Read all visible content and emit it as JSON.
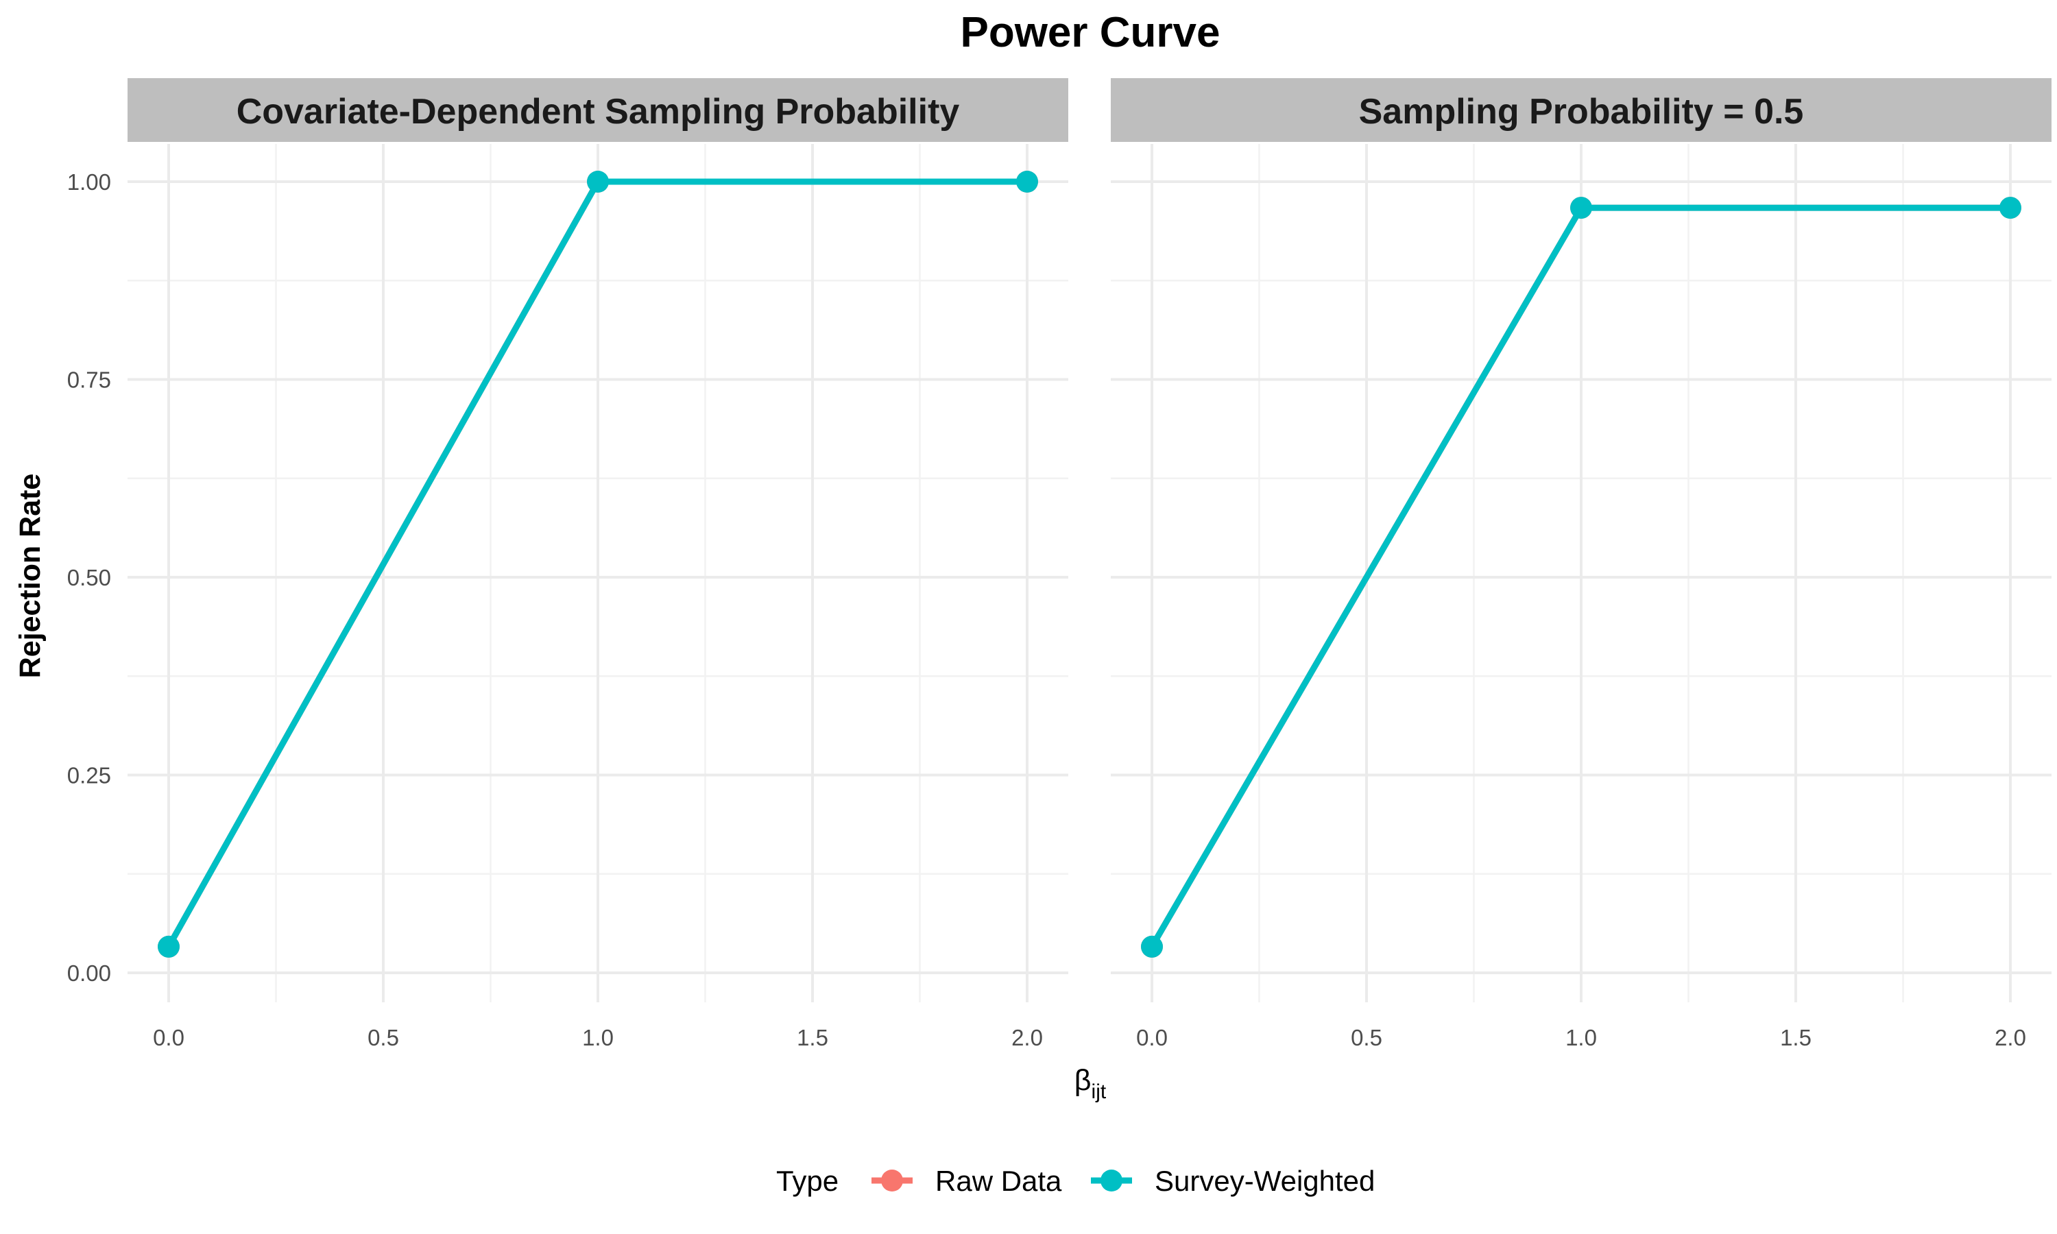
{
  "chart_data": {
    "type": "line",
    "title": "Power Curve",
    "xlabel_main": "β",
    "xlabel_sub": "ijt",
    "ylabel": "Rejection Rate",
    "xlim": [
      0,
      2
    ],
    "ylim": [
      0,
      1
    ],
    "x_ticks": [
      "0.0",
      "0.5",
      "1.0",
      "1.5",
      "2.0"
    ],
    "y_ticks": [
      "0.00",
      "0.25",
      "0.50",
      "0.75",
      "1.00"
    ],
    "grid": true,
    "legend": {
      "title": "Type",
      "position": "bottom",
      "entries": [
        {
          "label": "Raw Data",
          "color": "#F8766D"
        },
        {
          "label": "Survey-Weighted",
          "color": "#00BFC4"
        }
      ]
    },
    "panels": [
      {
        "strip": "Covariate-Dependent Sampling Probability",
        "series": [
          {
            "name": "Raw Data",
            "color": "#F8766D",
            "x": [
              0,
              1,
              2
            ],
            "y": [
              0.033,
              1.0,
              1.0
            ]
          },
          {
            "name": "Survey-Weighted",
            "color": "#00BFC4",
            "x": [
              0,
              1,
              2
            ],
            "y": [
              0.033,
              1.0,
              1.0
            ]
          }
        ]
      },
      {
        "strip": "Sampling Probability = 0.5",
        "series": [
          {
            "name": "Raw Data",
            "color": "#F8766D",
            "x": [
              0,
              1,
              2
            ],
            "y": [
              0.033,
              0.967,
              0.967
            ]
          },
          {
            "name": "Survey-Weighted",
            "color": "#00BFC4",
            "x": [
              0,
              1,
              2
            ],
            "y": [
              0.033,
              0.967,
              0.967
            ]
          }
        ]
      }
    ]
  }
}
